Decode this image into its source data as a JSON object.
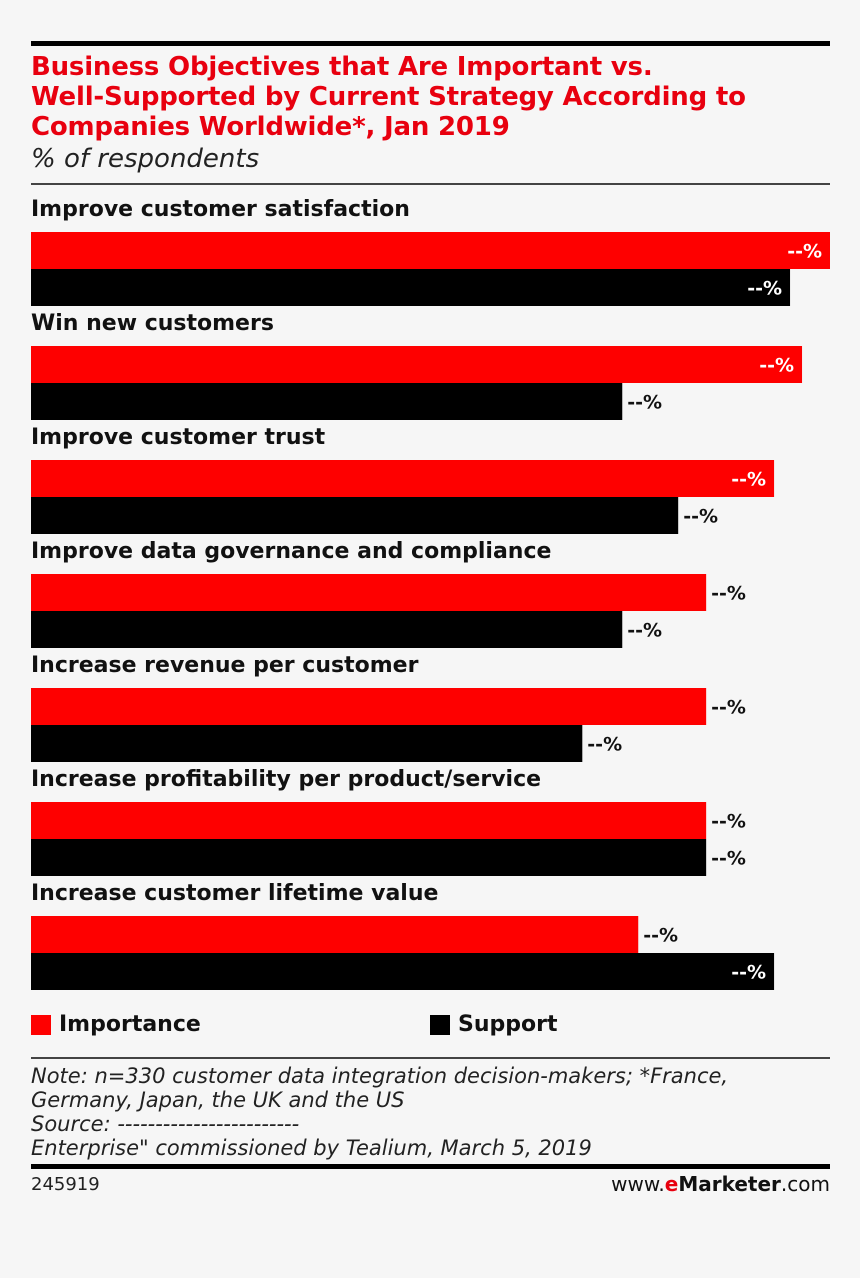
{
  "header": {
    "title": "Business Objectives that Are Important vs.\nWell-Supported by Current Strategy According to\nCompanies Worldwide*, Jan 2019",
    "subtitle": "% of respondents"
  },
  "colors": {
    "importance": "#fe0000",
    "support": "#000000"
  },
  "chart_data": {
    "type": "bar",
    "orientation": "horizontal",
    "title": "Business Objectives that Are Important vs. Well-Supported by Current Strategy According to Companies Worldwide*, Jan 2019",
    "subtitle": "% of respondents",
    "categories": [
      "Improve customer satisfaction",
      "Win new customers",
      "Improve customer trust",
      "Improve data governance and compliance",
      "Increase revenue per customer",
      "Increase profitability per product/service",
      "Increase customer lifetime value"
    ],
    "series": [
      {
        "name": "Importance",
        "color": "#fe0000",
        "values": [
          100,
          96.5,
          93,
          84.5,
          84.5,
          84.5,
          76
        ],
        "labels": [
          "--%",
          "--%",
          "--%",
          "--%",
          "--%",
          "--%",
          "--%"
        ]
      },
      {
        "name": "Support",
        "color": "#000000",
        "values": [
          95,
          74,
          81,
          74,
          69,
          84.5,
          93
        ],
        "labels": [
          "--%",
          "--%",
          "--%",
          "--%",
          "--%",
          "--%",
          "--%"
        ]
      }
    ],
    "xlim": [
      0,
      100
    ],
    "grid": false,
    "legend": "bottom"
  },
  "legend": {
    "importance_label": "Importance",
    "support_label": "Support"
  },
  "footer": {
    "note_lines": [
      "Note: n=330 customer data integration decision-makers; *France,",
      "Germany, Japan, the UK and the US",
      "Source: ------------------------",
      "Enterprise\" commissioned by Tealium, March 5, 2019"
    ],
    "chart_id": "245919",
    "brand_prefix": "www.",
    "brand_e": "e",
    "brand_main": "Marketer",
    "brand_suffix": ".com"
  }
}
